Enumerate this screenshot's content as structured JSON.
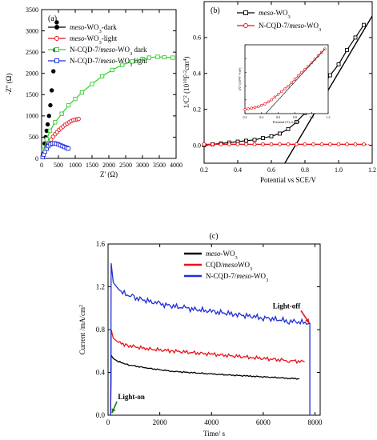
{
  "chart_data": [
    {
      "type": "scatter",
      "panel_label": "(a)",
      "xlabel": "Z' (Ω)",
      "ylabel": "-Z'' (Ω)",
      "xlim": [
        0,
        4000
      ],
      "ylim": [
        0,
        3500
      ],
      "xticks": [
        "0",
        "500",
        "1000",
        "1500",
        "2000",
        "2500",
        "3000",
        "3500",
        "4000"
      ],
      "yticks": [
        "0",
        "500",
        "1000",
        "1500",
        "2000",
        "2500",
        "3000",
        "3500"
      ],
      "series": [
        {
          "name": "meso-WO3-dark",
          "name_parts": [
            [
              "meso",
              true
            ],
            [
              "-WO",
              false
            ],
            [
              "3",
              "sub"
            ],
            [
              "-dark",
              false
            ]
          ],
          "color": "#000000",
          "marker": "filled-circle",
          "connected": false,
          "x": [
            40,
            60,
            90,
            120,
            150,
            180,
            220,
            260,
            300,
            350,
            400,
            450
          ],
          "y": [
            100,
            200,
            350,
            500,
            650,
            800,
            1000,
            1250,
            1600,
            2050,
            2550,
            3200
          ]
        },
        {
          "name": "meso-WO3-light",
          "name_parts": [
            [
              "meso",
              true
            ],
            [
              "-WO",
              false
            ],
            [
              "3",
              "sub"
            ],
            [
              "-light",
              false
            ]
          ],
          "color": "#e8131b",
          "marker": "open-circle",
          "connected": true,
          "x": [
            40,
            100,
            160,
            220,
            280,
            340,
            400,
            460,
            520,
            580,
            640,
            700,
            760,
            820,
            880,
            940,
            1000,
            1060,
            1100
          ],
          "y": [
            60,
            170,
            270,
            360,
            440,
            510,
            570,
            620,
            670,
            710,
            750,
            790,
            820,
            850,
            880,
            900,
            910,
            920,
            930
          ]
        },
        {
          "name": "N-CQD-7/meso-WO3 dark",
          "name_parts": [
            [
              "N-CQD-7/",
              false
            ],
            [
              "meso",
              true
            ],
            [
              "-WO",
              false
            ],
            [
              "3",
              "sub"
            ],
            [
              " dark",
              false
            ]
          ],
          "color": "#2fd12f",
          "marker": "open-square",
          "connected": true,
          "x": [
            60,
            150,
            250,
            400,
            600,
            800,
            1000,
            1200,
            1500,
            1800,
            2100,
            2400,
            2700,
            3000,
            3200,
            3450,
            3650,
            3900
          ],
          "y": [
            200,
            450,
            650,
            850,
            1050,
            1250,
            1400,
            1550,
            1750,
            1930,
            2080,
            2200,
            2280,
            2340,
            2370,
            2390,
            2380,
            2370
          ]
        },
        {
          "name": "N-CQD-7/meso-WO3 light",
          "name_parts": [
            [
              "N-CQD-7/",
              false
            ],
            [
              "meso",
              true
            ],
            [
              "-WO",
              false
            ],
            [
              "3",
              "sub"
            ],
            [
              " light",
              false
            ]
          ],
          "color": "#1f2fd8",
          "marker": "open-square",
          "connected": true,
          "x": [
            30,
            60,
            100,
            150,
            200,
            260,
            320,
            380,
            440,
            500,
            560,
            620,
            680,
            740,
            790
          ],
          "y": [
            30,
            90,
            160,
            230,
            290,
            330,
            350,
            355,
            345,
            330,
            310,
            290,
            270,
            250,
            230
          ]
        }
      ]
    },
    {
      "type": "scatter",
      "panel_label": "(b)",
      "xlabel": "Potential vs SCE/V",
      "ylabel": "1/C² (10¹⁰F⁻²cm⁴)",
      "ylabel_parts": [
        [
          "1/C",
          false
        ],
        [
          "2",
          "sup"
        ],
        [
          " (10",
          false
        ],
        [
          "10",
          "sup"
        ],
        [
          "F",
          false
        ],
        [
          "-2",
          "sup"
        ],
        [
          "cm",
          false
        ],
        [
          "4",
          "sup"
        ],
        [
          ")",
          false
        ]
      ],
      "xlim": [
        0.2,
        1.2
      ],
      "ylim": [
        -0.1,
        0.8
      ],
      "xticks": [
        "0.2",
        "0.4",
        "0.6",
        "0.8",
        "1.0",
        "1.2"
      ],
      "yticks": [
        "0.0",
        "0.2",
        "0.4",
        "0.6"
      ],
      "series": [
        {
          "name": "meso-WO3",
          "name_parts": [
            [
              "meso",
              true
            ],
            [
              "-WO",
              false
            ],
            [
              "3",
              "sub"
            ]
          ],
          "color": "#000000",
          "marker": "open-square",
          "connected": true,
          "x": [
            0.2,
            0.25,
            0.3,
            0.35,
            0.4,
            0.45,
            0.5,
            0.55,
            0.6,
            0.65,
            0.7,
            0.75,
            0.8,
            0.85,
            0.9,
            0.95,
            1.0,
            1.05,
            1.1,
            1.15
          ],
          "y": [
            0.0,
            0.005,
            0.01,
            0.015,
            0.02,
            0.025,
            0.03,
            0.04,
            0.05,
            0.065,
            0.09,
            0.13,
            0.18,
            0.25,
            0.32,
            0.39,
            0.45,
            0.53,
            0.6,
            0.67
          ]
        },
        {
          "name": "N-CQD-7/meso-WO3",
          "name_parts": [
            [
              "N-CQD-7/",
              false
            ],
            [
              "meso",
              true
            ],
            [
              "-WO",
              false
            ],
            [
              "3",
              "sub"
            ]
          ],
          "color": "#e8131b",
          "marker": "open-circle",
          "connected": true,
          "x": [
            0.2,
            0.25,
            0.3,
            0.35,
            0.4,
            0.45,
            0.5,
            0.55,
            0.6,
            0.65,
            0.7,
            0.75,
            0.8,
            0.85,
            0.9,
            0.95,
            1.0,
            1.05,
            1.1,
            1.15
          ],
          "y": [
            0.005,
            0.005,
            0.005,
            0.005,
            0.005,
            0.005,
            0.005,
            0.005,
            0.005,
            0.005,
            0.005,
            0.005,
            0.005,
            0.005,
            0.005,
            0.005,
            0.005,
            0.005,
            0.005,
            0.005
          ]
        }
      ],
      "fit_line": {
        "x": [
          0.68,
          1.2
        ],
        "y": [
          -0.1,
          0.72
        ]
      },
      "inset": {
        "xlabel": "Potential (V) vs SCE",
        "ylabel": "1/C² (10¹³F⁻²cm⁴)",
        "xlim": [
          0.2,
          1.2
        ],
        "xticks": [
          "0.2",
          "0.4",
          "0.6",
          "0.8",
          "1.0",
          "1.2"
        ],
        "yticks": [
          "",
          "",
          "",
          "",
          "",
          ""
        ],
        "series": [
          {
            "name": "N-CQD-7/meso-WO3",
            "color": "#e8131b",
            "marker": "open-circle",
            "x": [
              0.2,
              0.24,
              0.28,
              0.32,
              0.36,
              0.4,
              0.44,
              0.48,
              0.52,
              0.56,
              0.6,
              0.64,
              0.68,
              0.72,
              0.76,
              0.8,
              0.84,
              0.88,
              0.92,
              0.96,
              1.0,
              1.04,
              1.08,
              1.12,
              1.16
            ],
            "y": [
              0.06,
              0.07,
              0.08,
              0.09,
              0.1,
              0.12,
              0.14,
              0.17,
              0.2,
              0.24,
              0.28,
              0.32,
              0.36,
              0.4,
              0.45,
              0.5,
              0.55,
              0.6,
              0.64,
              0.69,
              0.74,
              0.79,
              0.84,
              0.89,
              0.94
            ]
          }
        ]
      }
    },
    {
      "type": "line",
      "panel_label": "(c)",
      "xlabel": "Time/ s",
      "ylabel": "Current /mA/cm²",
      "ylabel_parts": [
        [
          "Current /mA/cm",
          false
        ],
        [
          "2",
          "sup"
        ]
      ],
      "xlim": [
        0,
        8200
      ],
      "ylim": [
        0,
        1.6
      ],
      "xticks": [
        "0",
        "2000",
        "4000",
        "6000",
        "8000"
      ],
      "yticks": [
        "0.0",
        "0.4",
        "0.8",
        "1.2",
        "1.6"
      ],
      "series": [
        {
          "name": "meso-WO3",
          "name_parts": [
            [
              "meso",
              true
            ],
            [
              "-WO",
              false
            ],
            [
              "3",
              "sub"
            ]
          ],
          "color": "#000000",
          "x": [
            100,
            120,
            200,
            400,
            800,
            1500,
            2500,
            4000,
            5500,
            7000,
            7400
          ],
          "y": [
            0.0,
            0.56,
            0.53,
            0.5,
            0.47,
            0.44,
            0.41,
            0.385,
            0.365,
            0.345,
            0.34
          ]
        },
        {
          "name": "CQD/mesoWO3",
          "name_parts": [
            [
              "CQD/",
              false
            ],
            [
              "meso",
              true
            ],
            [
              "WO",
              false
            ],
            [
              "3",
              "sub"
            ]
          ],
          "color": "#e8131b",
          "x": [
            100,
            120,
            200,
            400,
            800,
            1500,
            2500,
            4000,
            5500,
            7000,
            7600
          ],
          "y": [
            0.0,
            0.8,
            0.72,
            0.68,
            0.65,
            0.62,
            0.6,
            0.57,
            0.54,
            0.51,
            0.5
          ]
        },
        {
          "name": "N-CQD-7/meso-WO3",
          "name_parts": [
            [
              "N-CQD-7/",
              false
            ],
            [
              "meso",
              true
            ],
            [
              "-WO",
              false
            ],
            [
              "3",
              "sub"
            ]
          ],
          "color": "#1f2fd8",
          "x": [
            100,
            120,
            200,
            500,
            1000,
            2000,
            3000,
            4000,
            5000,
            6000,
            7000,
            7800,
            7800
          ],
          "y": [
            0.0,
            1.42,
            1.24,
            1.15,
            1.1,
            1.04,
            1.0,
            0.97,
            0.94,
            0.91,
            0.88,
            0.86,
            0.0
          ]
        }
      ],
      "annotations": [
        {
          "text": "Light-on",
          "x": 150,
          "y": 0.02,
          "text_x": 900,
          "text_y": 0.15,
          "arrow_color": "#1a7a1a"
        },
        {
          "text": "Light-off",
          "x": 7780,
          "y": 0.86,
          "text_x": 6900,
          "text_y": 1.0,
          "arrow_color": "#e8131b"
        }
      ]
    }
  ]
}
